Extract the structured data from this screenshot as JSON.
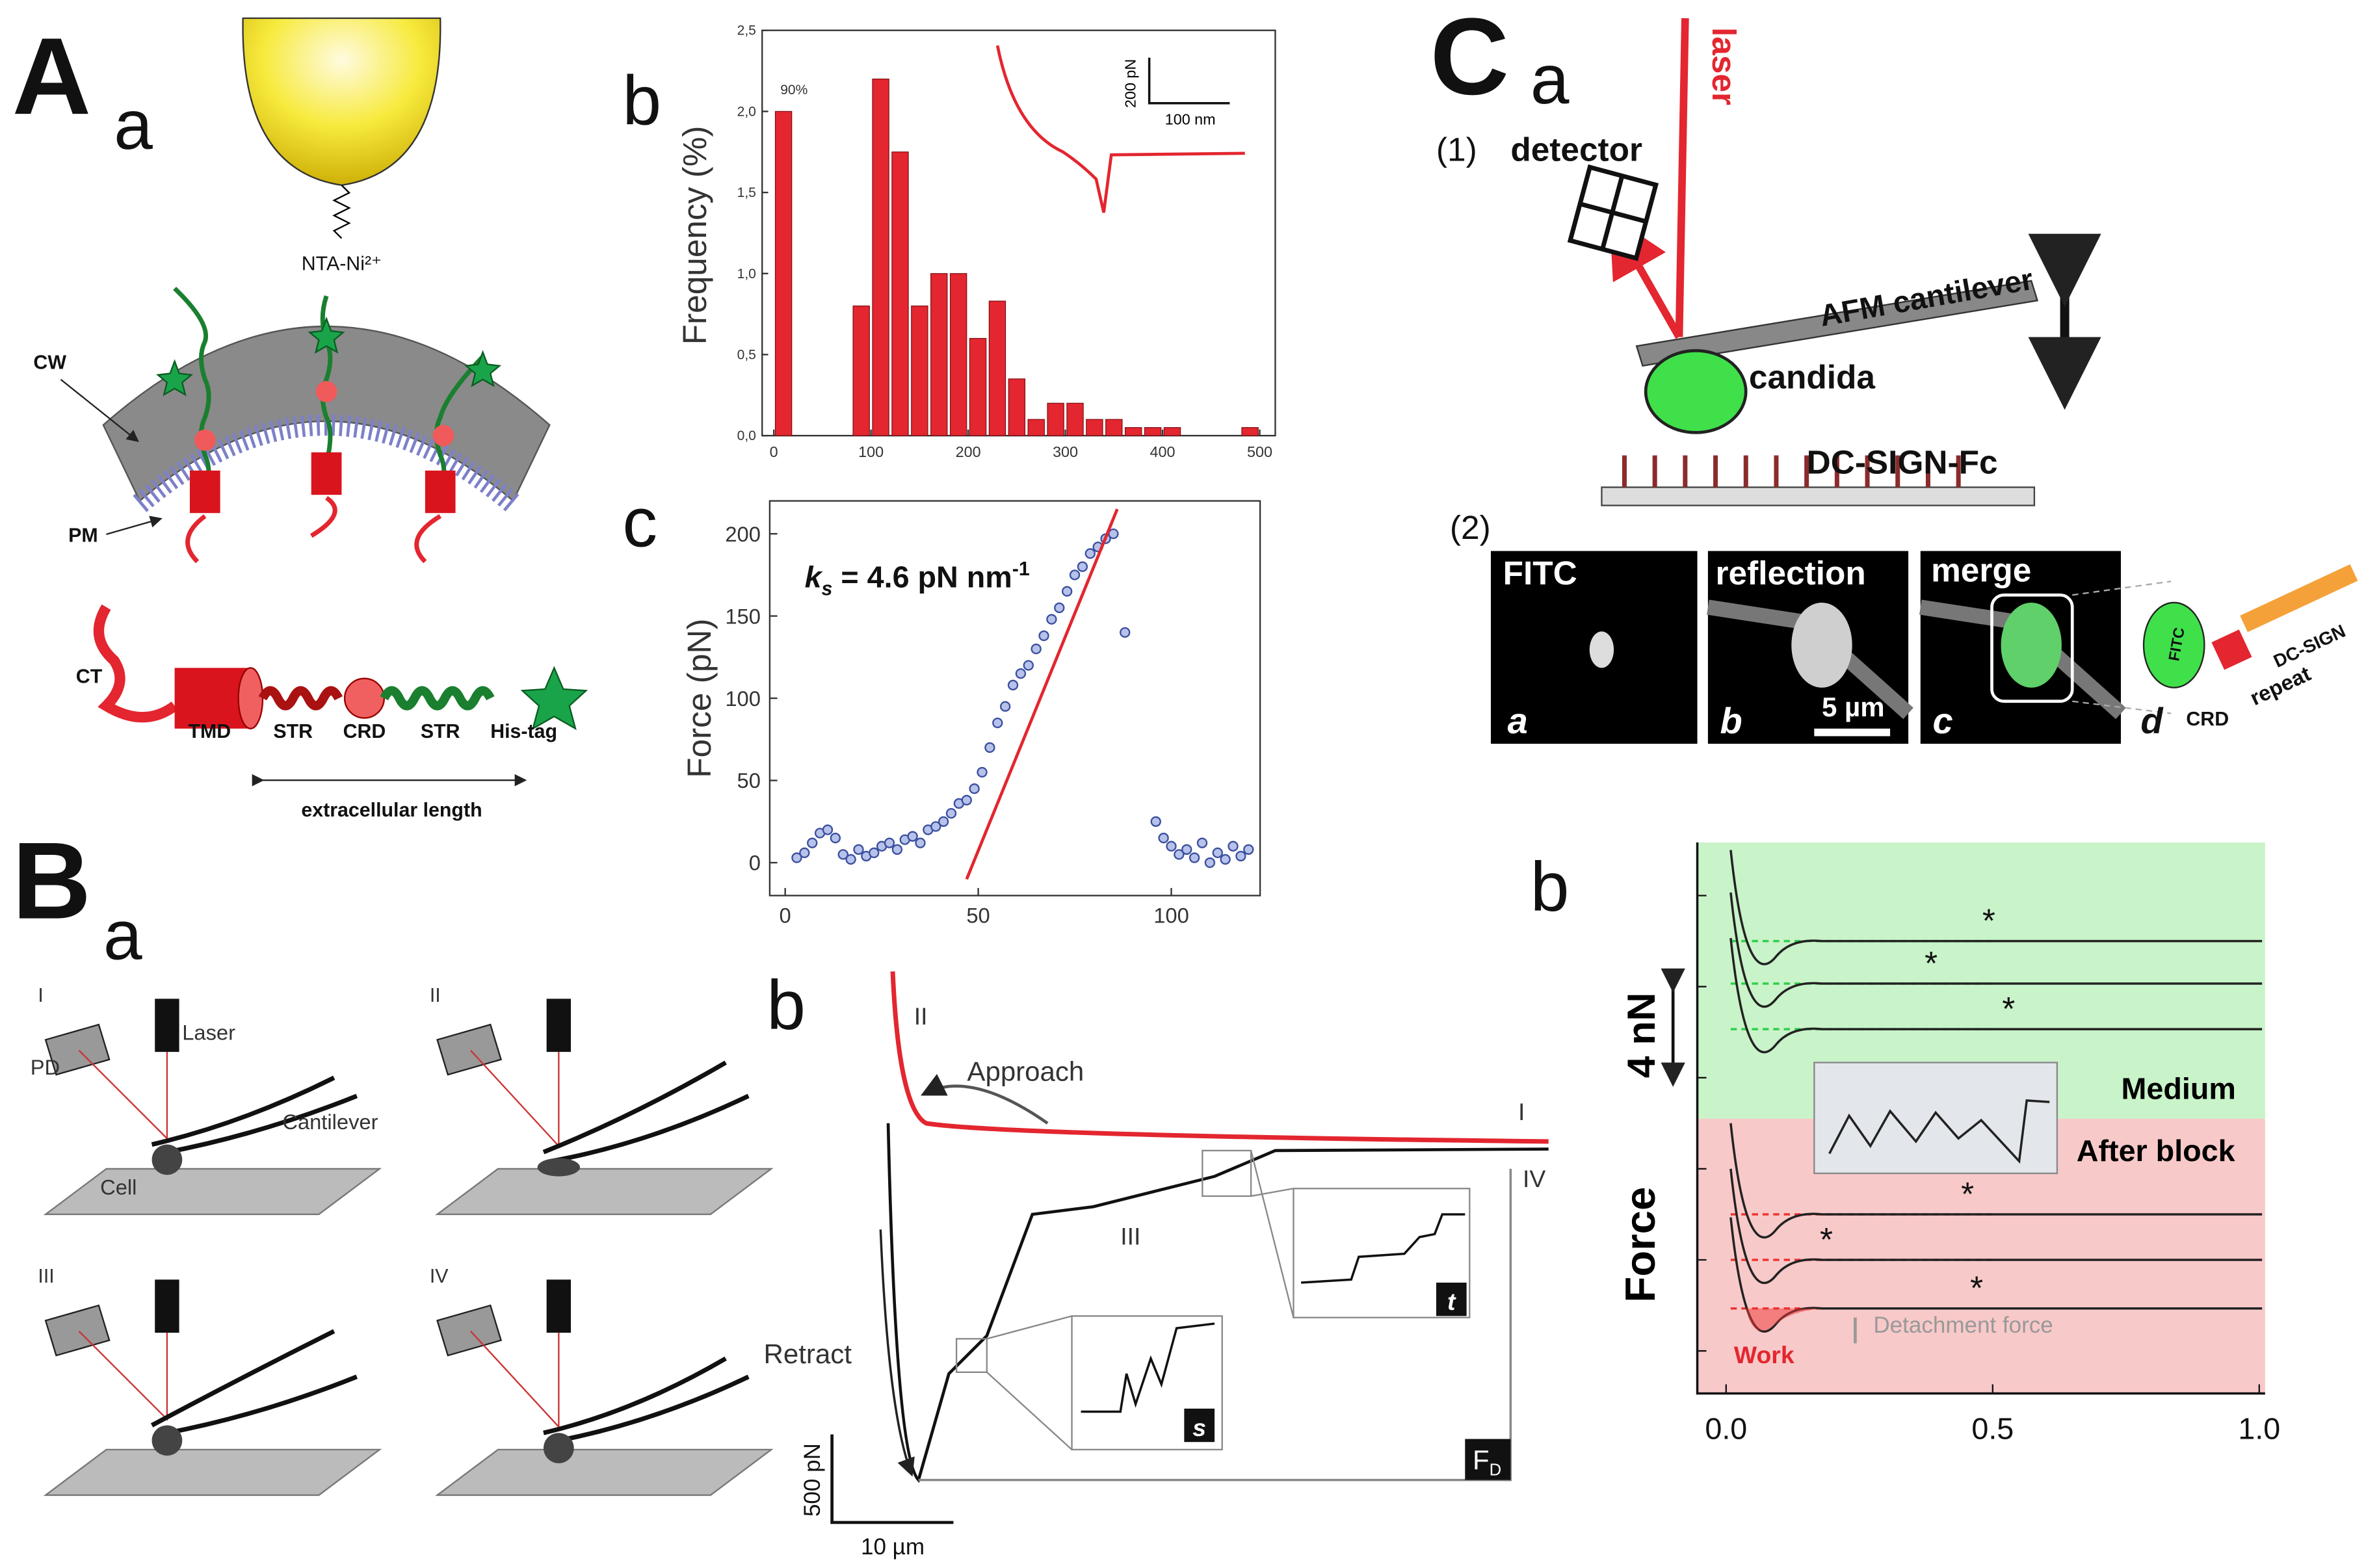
{
  "panels": {
    "A": {
      "label": "A",
      "a": {
        "label": "a",
        "tip": "NTA-Ni²⁺",
        "cw": "CW",
        "pm": "PM",
        "ct": "CT",
        "domains": [
          "TMD",
          "STR",
          "CRD",
          "STR",
          "His-tag"
        ],
        "length": "extracellular length"
      },
      "b": {
        "label": "b"
      },
      "c": {
        "label": "c"
      }
    },
    "B": {
      "label": "B",
      "a": {
        "label": "a",
        "steps": [
          "I",
          "II",
          "III",
          "IV"
        ],
        "laser": "Laser",
        "pd": "PD",
        "cantilever": "Cantilever",
        "cell": "Cell"
      },
      "b": {
        "label": "b",
        "approach": "Approach",
        "retract": "Retract",
        "stages": [
          "I",
          "II",
          "III",
          "IV"
        ],
        "insets": [
          "s",
          "t"
        ],
        "fd": "F",
        "fd_sub": "D",
        "scale_y": "500 pN",
        "scale_x": "10 µm"
      }
    },
    "C": {
      "label": "C",
      "a": {
        "label": "a",
        "laser": "laser",
        "step1": "(1)",
        "detector": "detector",
        "cantilever": "AFM cantilever",
        "cell": "candida",
        "surface": "DC-SIGN-Fc",
        "step2": "(2)",
        "images": [
          "FITC",
          "reflection",
          "merge"
        ],
        "image_letters": [
          "a",
          "b",
          "c",
          "d"
        ],
        "scale": "5 µm",
        "dye": "FITC",
        "receptor": "DC-SIGN",
        "repeat": "repeat",
        "crd": "CRD"
      },
      "b": {
        "label": "b"
      }
    }
  },
  "chart_data": [
    {
      "type": "histogram",
      "y_label": "Frequency (%)",
      "color": "#e3262f",
      "annotation": "90%",
      "bins": [
        0,
        20,
        40,
        60,
        80,
        100,
        120,
        140,
        160,
        180,
        200,
        220,
        240,
        260,
        280,
        300,
        320,
        340,
        360,
        380,
        400,
        420,
        440,
        460,
        480,
        500
      ],
      "counts": [
        2.0,
        0,
        0,
        0,
        0.8,
        2.2,
        1.75,
        0.8,
        1.0,
        1.0,
        0.6,
        0.83,
        0.35,
        0.1,
        0.2,
        0.2,
        0.1,
        0.1,
        0.05,
        0.05,
        0.05,
        0,
        0,
        0,
        0.05
      ],
      "xlim": [
        -12,
        516
      ],
      "xticks": [
        0,
        100,
        200,
        300,
        400,
        500
      ],
      "ylim": [
        0,
        2.5
      ],
      "yticks": [
        {
          "value": 0,
          "label": "0,0"
        },
        {
          "value": 0.5,
          "label": "0,5"
        },
        {
          "value": 1,
          "label": "1,0"
        },
        {
          "value": 1.5,
          "label": "1,5"
        },
        {
          "value": 2,
          "label": "2,0"
        },
        {
          "value": 2.5,
          "label": "2,5"
        }
      ],
      "inset": {
        "scale_y": "200 pN",
        "scale_x": "100 nm"
      }
    },
    {
      "type": "scatter",
      "y_label": "Force (pN)",
      "color": "#3b4f9e",
      "annotation": {
        "k": "k",
        "sub": "s",
        "rest": " = 4.6 pN nm",
        "sup": "-1"
      },
      "x": [
        3,
        5,
        7,
        9,
        11,
        13,
        15,
        17,
        19,
        21,
        23,
        25,
        27,
        29,
        31,
        33,
        35,
        37,
        39,
        41,
        43,
        45,
        47,
        49,
        51,
        53,
        55,
        57,
        59,
        61,
        63,
        65,
        67,
        69,
        71,
        73,
        75,
        77,
        79,
        81,
        83,
        85,
        88,
        96,
        98,
        100,
        102,
        104,
        106,
        108,
        110,
        112,
        114,
        116,
        118,
        120
      ],
      "values": [
        3,
        6,
        12,
        18,
        20,
        15,
        5,
        2,
        8,
        4,
        6,
        10,
        12,
        8,
        14,
        16,
        12,
        20,
        22,
        25,
        30,
        36,
        38,
        45,
        55,
        70,
        85,
        95,
        108,
        115,
        120,
        130,
        138,
        148,
        155,
        165,
        175,
        180,
        188,
        192,
        197,
        200,
        140,
        25,
        15,
        10,
        5,
        8,
        3,
        12,
        0,
        6,
        2,
        10,
        4,
        8
      ],
      "fit": {
        "x": [
          47,
          86
        ],
        "y": [
          -10,
          215
        ],
        "color": "#e3262f"
      },
      "xlim": [
        -4,
        123
      ],
      "xticks": [
        0,
        50,
        100
      ],
      "ylim": [
        -20,
        220
      ],
      "yticks": [
        0,
        50,
        100,
        150,
        200
      ]
    },
    {
      "type": "line",
      "y_label": "Force",
      "scale": "4 nN",
      "regions": [
        "Medium",
        "After block"
      ],
      "work": "Work",
      "detachment": "Detachment force",
      "marker": "*",
      "xlim": [
        -0.054,
        1.011
      ],
      "xticks": [
        {
          "value": 0,
          "label": "0.0"
        },
        {
          "value": 0.5,
          "label": "0.5"
        },
        {
          "value": 1,
          "label": "1.0"
        }
      ]
    }
  ]
}
